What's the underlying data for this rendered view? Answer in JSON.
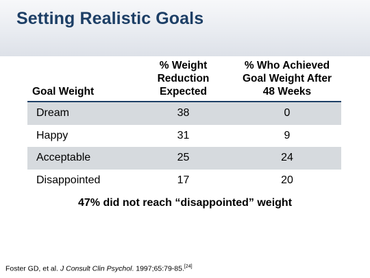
{
  "slide": {
    "title": "Setting Realistic Goals"
  },
  "table": {
    "headers": {
      "goal_weight": [
        "Goal Weight"
      ],
      "weight_reduction": [
        "% Weight",
        "Reduction Expected"
      ],
      "achieved": [
        "% Who Achieved",
        "Goal Weight After",
        "48 Weeks"
      ]
    },
    "rows": [
      {
        "goal": "Dream",
        "reduction": "38",
        "achieved": "0"
      },
      {
        "goal": "Happy",
        "reduction": "31",
        "achieved": "9"
      },
      {
        "goal": "Acceptable",
        "reduction": "25",
        "achieved": "24"
      },
      {
        "goal": "Disappointed",
        "reduction": "17",
        "achieved": "20"
      }
    ]
  },
  "summary": "47% did not reach “disappointed” weight",
  "citation": {
    "authors": "Foster GD, et al. ",
    "journal": "J Consult Clin Psychol",
    "details": ". 1997;65:79-85.",
    "ref": "[24]"
  },
  "colors": {
    "title": "#1d3f66",
    "row_shade": "#d6dade",
    "header_rule": "#1d3f66"
  }
}
